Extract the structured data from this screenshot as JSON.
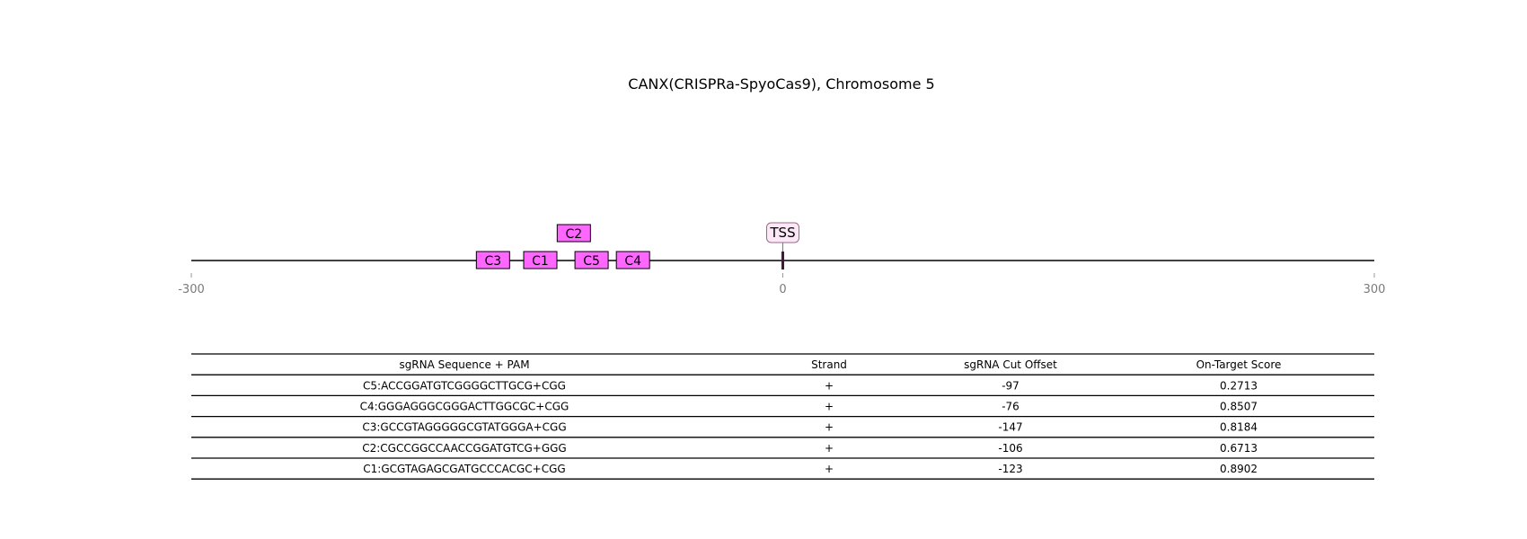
{
  "title": "CANX(CRISPRa-SpyoCas9), Chromosome 5",
  "colors": {
    "guide_fill": "#ff66ff",
    "tss_fill": "#fde8f8",
    "tss_stroke": "#9a6a8a",
    "axis": "#000000",
    "tick_label": "#7a7a7a"
  },
  "axis": {
    "min": -300,
    "max": 300,
    "ticks": [
      {
        "value": -300,
        "label": "-300"
      },
      {
        "value": 0,
        "label": "0"
      },
      {
        "value": 300,
        "label": "300"
      }
    ]
  },
  "tss": {
    "label": "TSS",
    "position": 0
  },
  "guides": [
    {
      "label": "C3",
      "position": -147,
      "row": 0
    },
    {
      "label": "C1",
      "position": -123,
      "row": 0
    },
    {
      "label": "C5",
      "position": -97,
      "row": 0
    },
    {
      "label": "C4",
      "position": -76,
      "row": 0
    },
    {
      "label": "C2",
      "position": -106,
      "row": 1
    }
  ],
  "table": {
    "headers": [
      "sgRNA Sequence + PAM",
      "Strand",
      "sgRNA Cut Offset",
      "On-Target Score"
    ],
    "rows": [
      [
        "C5:ACCGGATGTCGGGGCTTGCG+CGG",
        "+",
        "-97",
        "0.2713"
      ],
      [
        "C4:GGGAGGGCGGGACTTGGCGC+CGG",
        "+",
        "-76",
        "0.8507"
      ],
      [
        "C3:GCCGTAGGGGGCGTATGGGA+CGG",
        "+",
        "-147",
        "0.8184"
      ],
      [
        "C2:CGCCGGCCAACCGGATGTCG+GGG",
        "+",
        "-106",
        "0.6713"
      ],
      [
        "C1:GCGTAGAGCGATGCCCACGC+CGG",
        "+",
        "-123",
        "0.8902"
      ]
    ]
  }
}
